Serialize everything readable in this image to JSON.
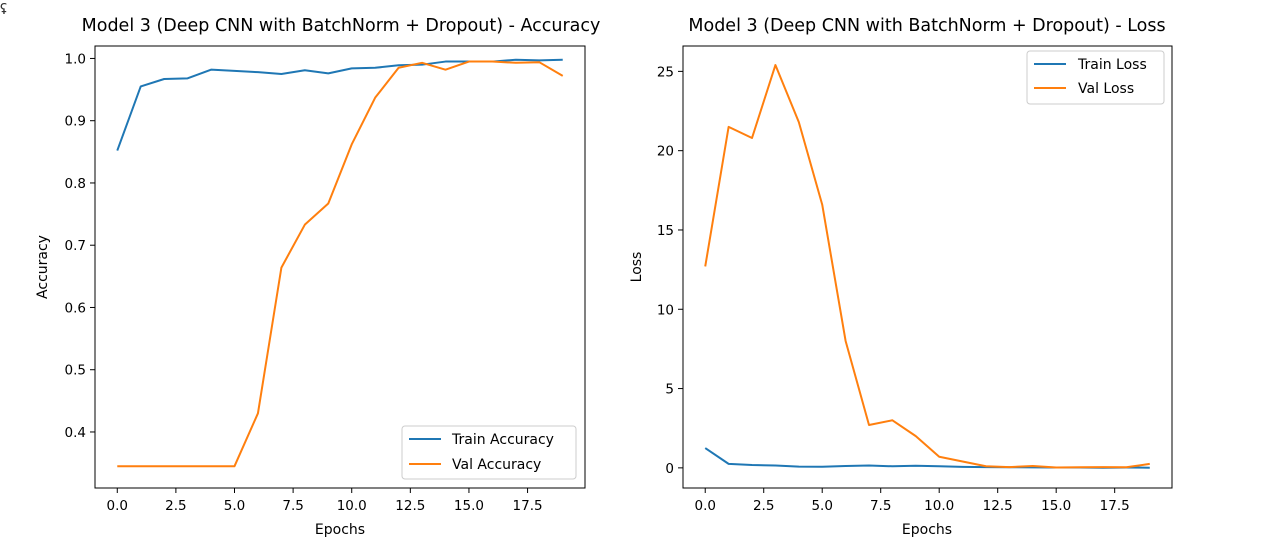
{
  "page": {
    "corner_glyph": "ʢ"
  },
  "chart_data": [
    {
      "type": "line",
      "title": "Model 3 (Deep CNN with BatchNorm + Dropout) - Accuracy",
      "xlabel": "Epochs",
      "ylabel": "Accuracy",
      "xlim": [
        -0.95,
        19.95
      ],
      "ylim": [
        0.31,
        1.02
      ],
      "xticks": [
        0.0,
        2.5,
        5.0,
        7.5,
        10.0,
        12.5,
        15.0,
        17.5
      ],
      "xtick_labels": [
        "0.0",
        "2.5",
        "5.0",
        "7.5",
        "10.0",
        "12.5",
        "15.0",
        "17.5"
      ],
      "yticks": [
        0.4,
        0.5,
        0.6,
        0.7,
        0.8,
        0.9,
        1.0
      ],
      "ytick_labels": [
        "0.4",
        "0.5",
        "0.6",
        "0.7",
        "0.8",
        "0.9",
        "1.0"
      ],
      "grid": false,
      "legend_position": "lower right",
      "x": [
        0,
        1,
        2,
        3,
        4,
        5,
        6,
        7,
        8,
        9,
        10,
        11,
        12,
        13,
        14,
        15,
        16,
        17,
        18,
        19
      ],
      "series": [
        {
          "name": "Train Accuracy",
          "color": "#1f77b4",
          "values": [
            0.852,
            0.955,
            0.967,
            0.968,
            0.982,
            0.98,
            0.978,
            0.975,
            0.981,
            0.976,
            0.984,
            0.985,
            0.989,
            0.99,
            0.995,
            0.995,
            0.995,
            0.998,
            0.997,
            0.998
          ]
        },
        {
          "name": "Val Accuracy",
          "color": "#ff7f0e",
          "values": [
            0.345,
            0.345,
            0.345,
            0.345,
            0.345,
            0.345,
            0.43,
            0.664,
            0.733,
            0.767,
            0.862,
            0.937,
            0.985,
            0.993,
            0.982,
            0.995,
            0.995,
            0.993,
            0.994,
            0.972
          ]
        }
      ]
    },
    {
      "type": "line",
      "title": "Model 3 (Deep CNN with BatchNorm + Dropout) - Loss",
      "xlabel": "Epochs",
      "ylabel": "Loss",
      "xlim": [
        -0.95,
        19.95
      ],
      "ylim": [
        -1.27,
        26.6
      ],
      "xticks": [
        0.0,
        2.5,
        5.0,
        7.5,
        10.0,
        12.5,
        15.0,
        17.5
      ],
      "xtick_labels": [
        "0.0",
        "2.5",
        "5.0",
        "7.5",
        "10.0",
        "12.5",
        "15.0",
        "17.5"
      ],
      "yticks": [
        0,
        5,
        10,
        15,
        20,
        25
      ],
      "ytick_labels": [
        "0",
        "5",
        "10",
        "15",
        "20",
        "25"
      ],
      "grid": false,
      "legend_position": "upper right",
      "x": [
        0,
        1,
        2,
        3,
        4,
        5,
        6,
        7,
        8,
        9,
        10,
        11,
        12,
        13,
        14,
        15,
        16,
        17,
        18,
        19
      ],
      "series": [
        {
          "name": "Train Loss",
          "color": "#1f77b4",
          "values": [
            1.25,
            0.25,
            0.18,
            0.15,
            0.08,
            0.07,
            0.12,
            0.15,
            0.1,
            0.13,
            0.1,
            0.06,
            0.05,
            0.04,
            0.03,
            0.02,
            0.02,
            0.01,
            0.02,
            0.01
          ]
        },
        {
          "name": "Val Loss",
          "color": "#ff7f0e",
          "values": [
            12.7,
            21.5,
            20.8,
            25.4,
            21.8,
            16.6,
            8.0,
            2.7,
            3.0,
            2.0,
            0.7,
            0.4,
            0.1,
            0.05,
            0.12,
            0.02,
            0.04,
            0.05,
            0.04,
            0.25
          ]
        }
      ]
    }
  ]
}
